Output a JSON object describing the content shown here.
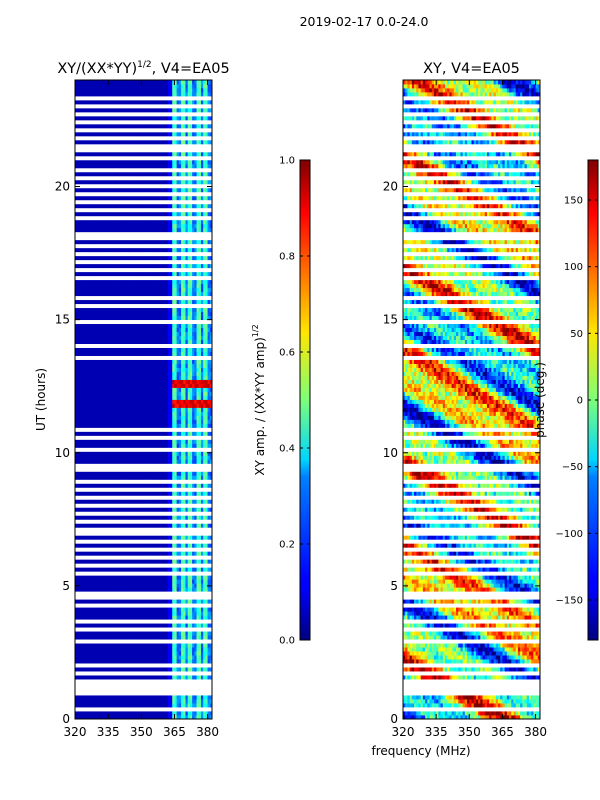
{
  "figure": {
    "suptitle": "2019-02-17 0.0-24.0",
    "xlabel_shared": "frequency (MHz)"
  },
  "chart_data": [
    {
      "type": "heatmap",
      "title": "XY/(XX*YY)",
      "title_exp": "1/2",
      "title_suffix": ", V4=EA05",
      "xlabel": "",
      "ylabel": "UT (hours)",
      "xlim": [
        320,
        382
      ],
      "ylim": [
        0,
        24
      ],
      "xticks": [
        "320",
        "335",
        "350",
        "365",
        "380"
      ],
      "xtick_values": [
        320,
        335,
        350,
        365,
        380
      ],
      "yticks": [
        "0",
        "5",
        "10",
        "15",
        "20"
      ],
      "ytick_values": [
        0,
        5,
        10,
        15,
        20
      ],
      "colorbar": {
        "label": "XY amp. / (XX*YY amp)",
        "label_exp": "1/2",
        "range": [
          0.0,
          1.0
        ],
        "ticks": [
          "0.0",
          "0.2",
          "0.4",
          "0.6",
          "0.8",
          "1.0"
        ],
        "tick_values": [
          0.0,
          0.2,
          0.4,
          0.6,
          0.8,
          1.0
        ]
      },
      "background_value": 0.05,
      "active_band_mhz": [
        363,
        382
      ],
      "bright_channels_mhz": [
        365,
        369,
        372,
        376,
        379
      ],
      "hot_times_h": [
        11.8,
        12.6
      ]
    },
    {
      "type": "heatmap",
      "title": "XY, V4=EA05",
      "xlabel": "frequency (MHz)",
      "ylabel": "",
      "xlim": [
        320,
        382
      ],
      "ylim": [
        0,
        24
      ],
      "xticks": [
        "320",
        "335",
        "350",
        "365",
        "380"
      ],
      "xtick_values": [
        320,
        335,
        350,
        365,
        380
      ],
      "yticks": [
        "0",
        "5",
        "10",
        "15",
        "20"
      ],
      "ytick_values": [
        0,
        5,
        10,
        15,
        20
      ],
      "colorbar": {
        "label": "phase (deg.)",
        "range": [
          -180,
          180
        ],
        "ticks": [
          "−150",
          "−100",
          "−50",
          "0",
          "50",
          "100",
          "150"
        ],
        "tick_values": [
          -150,
          -100,
          -50,
          0,
          50,
          100,
          150
        ]
      }
    }
  ],
  "flagged_times_h": [
    0.35,
    0.45,
    0.95,
    1.05,
    1.15,
    1.25,
    1.35,
    1.45,
    1.75,
    2.0,
    2.25,
    2.9,
    3.15,
    3.4,
    3.7,
    4.05,
    4.25,
    4.55,
    4.75,
    5.25,
    5.45,
    5.75,
    6.05,
    6.35,
    6.65,
    6.95,
    7.15,
    7.45,
    7.75,
    8.05,
    8.35,
    8.65,
    8.95,
    9.35,
    9.55,
    9.75,
    10.15,
    10.55,
    10.85,
    11.25,
    11.55,
    12.15,
    12.45,
    12.75,
    13.05,
    13.35,
    13.55,
    14.05,
    14.55,
    14.95,
    15.15,
    15.55,
    15.85,
    16.05,
    16.35,
    16.55,
    16.85,
    17.15,
    17.45,
    17.75,
    18.05,
    18.25,
    18.45,
    18.85,
    19.15,
    19.45,
    19.75,
    20.0,
    20.35,
    20.65,
    21.05,
    21.35,
    21.55,
    21.85,
    22.15,
    22.45,
    22.75,
    23.0,
    23.35
  ]
}
